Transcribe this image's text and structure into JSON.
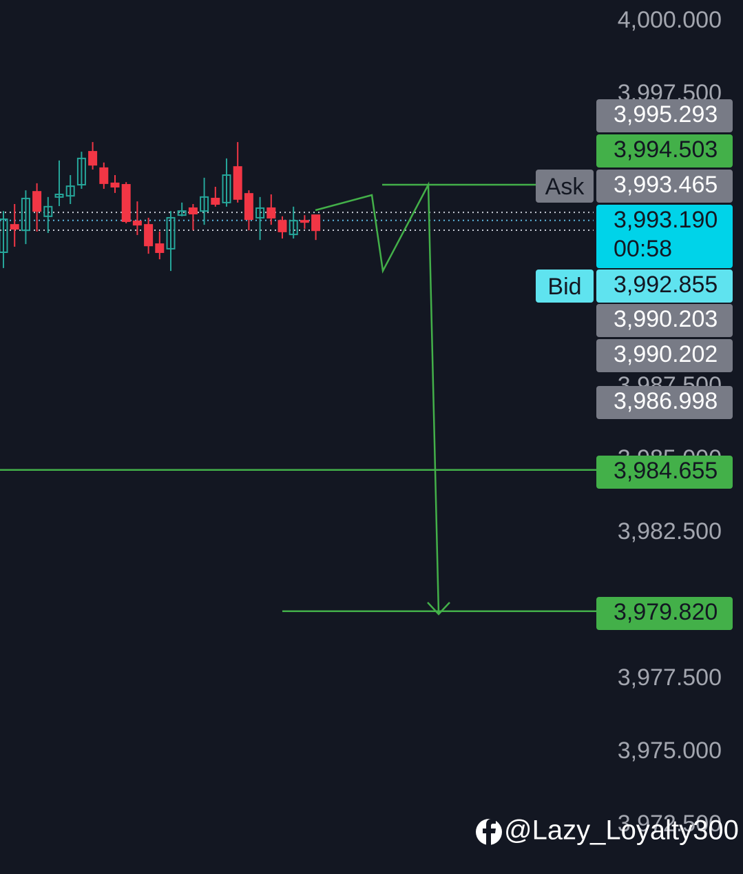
{
  "chart_data": {
    "type": "candlestick",
    "ylim": [
      3970.83,
      4000.73
    ],
    "yticks": [
      {
        "value": 4000,
        "label": "4,000.000"
      },
      {
        "value": 3997.5,
        "label": "3,997.500"
      },
      {
        "value": 3987.5,
        "label": "3,987.500"
      },
      {
        "value": 3985,
        "label": "3,985.000"
      },
      {
        "value": 3982.5,
        "label": "3,982.500"
      },
      {
        "value": 3977.5,
        "label": "3,977.500"
      },
      {
        "value": 3975,
        "label": "3,975.000"
      },
      {
        "value": 3972.5,
        "label": "3,972.500"
      }
    ],
    "up_color": "#26a69a",
    "down_color": "#f23645",
    "open": [
      3992.1,
      3993.04,
      3992.85,
      3994.17,
      3993.33,
      3993.99,
      3994.03,
      3994.41,
      3995.54,
      3994.98,
      3994.46,
      3994.41,
      3993.16,
      3993.04,
      3992.38,
      3992.22,
      3993.37,
      3993.61,
      3993.51,
      3993.94,
      3993.8,
      3995.02,
      3994.1,
      3993.28,
      3993.61,
      3993.18,
      3992.71,
      3993.18,
      3993.37
    ],
    "high": [
      3993.51,
      3993.75,
      3994.22,
      3994.46,
      3993.99,
      3995.24,
      3994.74,
      3995.54,
      3995.87,
      3995.17,
      3994.74,
      3994.5,
      3993.84,
      3993.28,
      3992.81,
      3993.51,
      3993.8,
      3993.75,
      3994.65,
      3994.34,
      3995.31,
      3995.87,
      3994.22,
      3993.99,
      3994.08,
      3993.33,
      3993.66,
      3993.37,
      3993.37
    ],
    "low": [
      3991.56,
      3992.29,
      3992.38,
      3992.81,
      3992.76,
      3993.68,
      3993.75,
      3994.27,
      3994.93,
      3994.27,
      3994.13,
      3993.09,
      3992.69,
      3992.05,
      3991.86,
      3991.46,
      3993.33,
      3992.85,
      3993.04,
      3993.66,
      3993.66,
      3993.8,
      3992.85,
      3992.52,
      3993.04,
      3992.57,
      3992.57,
      3992.9,
      3992.52
    ],
    "close": [
      3993.23,
      3992.9,
      3993.94,
      3993.51,
      3993.66,
      3994.08,
      3994.36,
      3995.31,
      3995.09,
      3994.46,
      3994.34,
      3993.16,
      3993.04,
      3992.33,
      3992.1,
      3993.28,
      3993.51,
      3993.42,
      3993.99,
      3993.75,
      3994.74,
      3993.92,
      3993.23,
      3993.61,
      3993.28,
      3992.81,
      3993.18,
      3993.14,
      3992.85
    ],
    "price_tags": [
      {
        "value": 3995.293,
        "label": "3,995.293",
        "color": "#787b86"
      },
      {
        "value": 3994.503,
        "label": "3,994.503",
        "color": "#43b049"
      },
      {
        "value": 3993.465,
        "label": "3,993.465",
        "color": "#787b86",
        "name": "Ask"
      },
      {
        "value": 3993.19,
        "label": "3,993.190",
        "color": "#00d3e9",
        "countdown": "00:58"
      },
      {
        "value": 3992.855,
        "label": "3,992.855",
        "color": "#5fe3ef",
        "name": "Bid"
      },
      {
        "value": 3990.203,
        "label": "3,990.203",
        "color": "#787b86"
      },
      {
        "value": 3990.202,
        "label": "3,990.202",
        "color": "#787b86"
      },
      {
        "value": 3986.998,
        "label": "3,986.998",
        "color": "#787b86"
      },
      {
        "value": 3984.655,
        "label": "3,984.655",
        "color": "#43b049"
      },
      {
        "value": 3979.82,
        "label": "3,979.820",
        "color": "#43b049"
      }
    ],
    "watermark": "@Lazy_Loyalty300"
  }
}
